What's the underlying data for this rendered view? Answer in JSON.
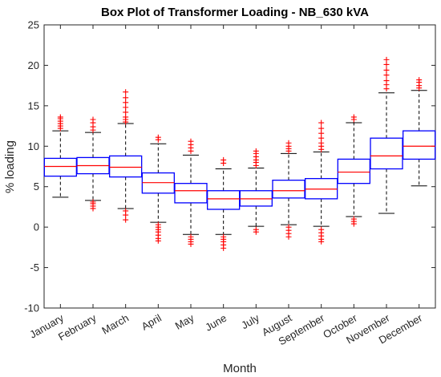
{
  "chart_data": {
    "type": "box",
    "title": "Box Plot of Transformer Loading - NB_630 kVA",
    "xlabel": "Month",
    "ylabel": "% loading",
    "ylim": [
      -10,
      25
    ],
    "yticks": [
      -10,
      -5,
      0,
      5,
      10,
      15,
      20,
      25
    ],
    "grid": false,
    "colors": {
      "box": "#0000ff",
      "median": "#ff0000",
      "whisker": "#000000",
      "outlier": "#ff0000"
    },
    "categories": [
      "January",
      "February",
      "March",
      "April",
      "May",
      "June",
      "July",
      "August",
      "September",
      "October",
      "November",
      "December"
    ],
    "boxes": [
      {
        "min": 3.7,
        "q1": 6.3,
        "median": 7.5,
        "q3": 8.5,
        "max": 11.9,
        "outliers_high": [
          12.2,
          12.5,
          12.8,
          13.1,
          13.4,
          13.6
        ],
        "outliers_low": []
      },
      {
        "min": 3.3,
        "q1": 6.6,
        "median": 7.6,
        "q3": 8.6,
        "max": 11.7,
        "outliers_high": [
          12.0,
          12.4,
          12.9,
          13.3
        ],
        "outliers_low": [
          2.3,
          2.6,
          2.9,
          3.1
        ]
      },
      {
        "min": 2.3,
        "q1": 6.2,
        "median": 7.4,
        "q3": 8.8,
        "max": 12.8,
        "outliers_high": [
          13.0,
          13.3,
          13.6,
          14.2,
          14.8,
          15.4,
          16.0,
          16.7
        ],
        "outliers_low": [
          0.9,
          1.5,
          2.0
        ]
      },
      {
        "min": 0.6,
        "q1": 4.2,
        "median": 5.5,
        "q3": 6.7,
        "max": 10.3,
        "outliers_high": [
          10.8,
          11.1
        ],
        "outliers_low": [
          0.3,
          0.0,
          -0.3,
          -0.6,
          -1.0,
          -1.4,
          -1.7
        ]
      },
      {
        "min": -0.9,
        "q1": 3.0,
        "median": 4.5,
        "q3": 5.4,
        "max": 8.9,
        "outliers_high": [
          9.4,
          9.8,
          10.2,
          10.6
        ],
        "outliers_low": [
          -1.2,
          -1.5,
          -1.8,
          -2.1
        ]
      },
      {
        "min": -0.9,
        "q1": 2.2,
        "median": 3.5,
        "q3": 4.5,
        "max": 7.2,
        "outliers_high": [
          7.9,
          8.3
        ],
        "outliers_low": [
          -1.2,
          -1.5,
          -1.8,
          -2.2,
          -2.6
        ]
      },
      {
        "min": 0.1,
        "q1": 2.6,
        "median": 3.5,
        "q3": 4.5,
        "max": 7.3,
        "outliers_high": [
          7.6,
          8.0,
          8.3,
          8.7,
          9.1,
          9.4
        ],
        "outliers_low": [
          -0.3,
          -0.6
        ]
      },
      {
        "min": 0.3,
        "q1": 3.6,
        "median": 4.5,
        "q3": 5.8,
        "max": 9.1,
        "outliers_high": [
          9.4,
          9.7,
          10.0,
          10.4
        ],
        "outliers_low": [
          0.0,
          -0.4,
          -0.8,
          -1.2
        ]
      },
      {
        "min": 0.1,
        "q1": 3.5,
        "median": 4.7,
        "q3": 6.0,
        "max": 9.3,
        "outliers_high": [
          9.6,
          10.0,
          10.4,
          11.0,
          11.6,
          12.2,
          12.9
        ],
        "outliers_low": [
          -0.3,
          -0.7,
          -1.1,
          -1.5,
          -1.8
        ]
      },
      {
        "min": 1.3,
        "q1": 5.4,
        "median": 6.8,
        "q3": 8.4,
        "max": 12.9,
        "outliers_high": [
          13.3,
          13.6
        ],
        "outliers_low": [
          1.0,
          0.7,
          0.4
        ]
      },
      {
        "min": 1.7,
        "q1": 7.2,
        "median": 8.8,
        "q3": 11.0,
        "max": 16.6,
        "outliers_high": [
          17.1,
          17.6,
          18.1,
          18.8,
          19.4,
          20.1,
          20.7
        ],
        "outliers_low": []
      },
      {
        "min": 5.1,
        "q1": 8.4,
        "median": 10.0,
        "q3": 11.9,
        "max": 16.9,
        "outliers_high": [
          17.2,
          17.5,
          17.9,
          18.2
        ],
        "outliers_low": []
      }
    ]
  }
}
